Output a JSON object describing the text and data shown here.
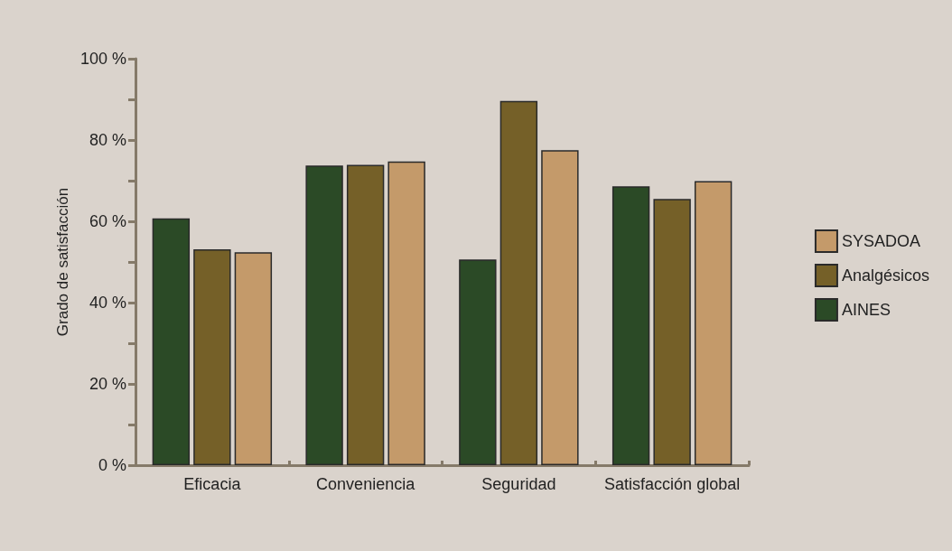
{
  "chart_data": {
    "type": "bar",
    "ylabel": "Grado de satisfacción",
    "categories": [
      "Eficacia",
      "Conveniencia",
      "Seguridad",
      "Satisfacción global"
    ],
    "series": [
      {
        "name": "AINES",
        "color": "#2b4a26",
        "values": [
          60.7,
          73.7,
          50.6,
          68.6
        ]
      },
      {
        "name": "Analgésicos",
        "color": "#756028",
        "values": [
          53.1,
          73.9,
          89.6,
          65.5
        ]
      },
      {
        "name": "SYSADOA",
        "color": "#c49a6a",
        "values": [
          52.4,
          74.7,
          77.5,
          69.9
        ]
      }
    ],
    "ylim": [
      0,
      100
    ],
    "yticks": [
      {
        "value": 0,
        "label": "0 %"
      },
      {
        "value": 10,
        "label": null
      },
      {
        "value": 20,
        "label": "20 %"
      },
      {
        "value": 30,
        "label": null
      },
      {
        "value": 40,
        "label": "40 %"
      },
      {
        "value": 50,
        "label": null
      },
      {
        "value": 60,
        "label": "60 %"
      },
      {
        "value": 70,
        "label": null
      },
      {
        "value": 80,
        "label": "80 %"
      },
      {
        "value": 90,
        "label": null
      },
      {
        "value": 100,
        "label": "100 %"
      }
    ],
    "grid": false,
    "legend": "right"
  }
}
